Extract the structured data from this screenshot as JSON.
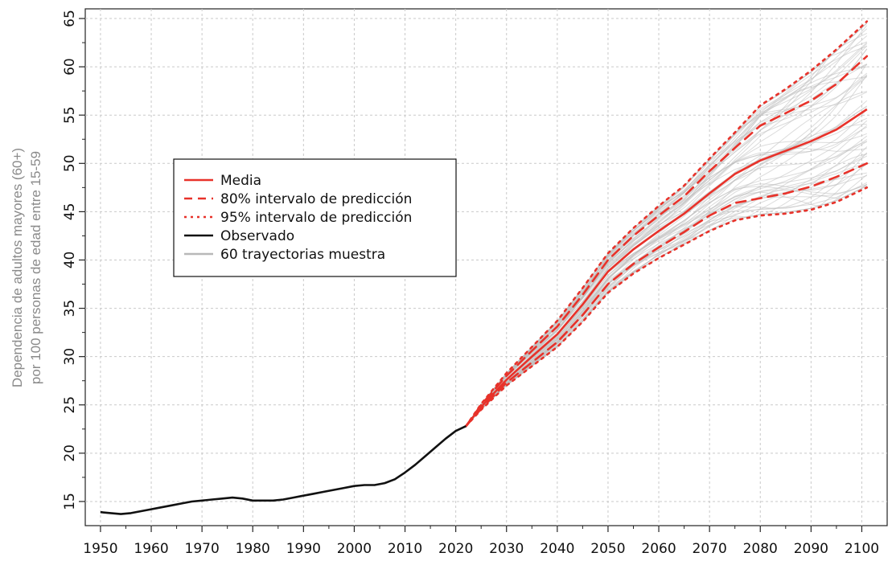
{
  "chart_data": {
    "type": "line",
    "title": "",
    "xlabel": "",
    "ylabel_lines": [
      "Dependencia de adultos mayores (60+)",
      "por 100 personas de edad entre 15-59"
    ],
    "xlim": [
      1947,
      2105
    ],
    "ylim": [
      12.5,
      66
    ],
    "x_ticks": [
      "1950",
      "1960",
      "1970",
      "1980",
      "1990",
      "2000",
      "2010",
      "2020",
      "2030",
      "2040",
      "2050",
      "2060",
      "2070",
      "2080",
      "2090",
      "2100"
    ],
    "y_ticks": [
      "15",
      "20",
      "25",
      "30",
      "35",
      "40",
      "45",
      "50",
      "55",
      "60",
      "65"
    ],
    "grid": true,
    "legend_position": "left-middle",
    "legend": [
      {
        "label": "Media",
        "style": "solid",
        "color": "#e8322a"
      },
      {
        "label": "80% intervalo de predicción",
        "style": "dashed",
        "color": "#e8322a"
      },
      {
        "label": "95% intervalo de predicción",
        "style": "dotted",
        "color": "#e8322a"
      },
      {
        "label": "Observado",
        "style": "solid",
        "color": "#111111"
      },
      {
        "label": "60 trayectorias muestra",
        "style": "solid",
        "color": "#b8b8b8"
      }
    ],
    "series": [
      {
        "name": "Observado",
        "role": "observed",
        "x": [
          1950,
          1952,
          1954,
          1956,
          1958,
          1960,
          1962,
          1964,
          1966,
          1968,
          1970,
          1972,
          1974,
          1976,
          1978,
          1980,
          1982,
          1984,
          1986,
          1988,
          1990,
          1992,
          1994,
          1996,
          1998,
          2000,
          2002,
          2004,
          2006,
          2008,
          2010,
          2012,
          2014,
          2016,
          2018,
          2020,
          2022
        ],
        "y": [
          13.9,
          13.8,
          13.7,
          13.8,
          14.0,
          14.2,
          14.4,
          14.6,
          14.8,
          15.0,
          15.1,
          15.2,
          15.3,
          15.4,
          15.3,
          15.1,
          15.1,
          15.1,
          15.2,
          15.4,
          15.6,
          15.8,
          16.0,
          16.2,
          16.4,
          16.6,
          16.7,
          16.7,
          16.9,
          17.3,
          18.0,
          18.8,
          19.7,
          20.6,
          21.5,
          22.3,
          22.8
        ]
      },
      {
        "name": "Media",
        "role": "median",
        "x": [
          2022,
          2025,
          2030,
          2035,
          2040,
          2045,
          2050,
          2055,
          2060,
          2065,
          2070,
          2075,
          2080,
          2085,
          2090,
          2095,
          2101
        ],
        "y": [
          22.8,
          24.8,
          27.6,
          30.0,
          32.3,
          35.4,
          38.8,
          41.1,
          43.0,
          44.8,
          46.9,
          48.9,
          50.3,
          51.3,
          52.3,
          53.5,
          55.6
        ]
      },
      {
        "name": "80% intervalo de predicción",
        "role": "pi80_upper",
        "x": [
          2022,
          2025,
          2030,
          2035,
          2040,
          2045,
          2050,
          2055,
          2060,
          2065,
          2070,
          2075,
          2080,
          2085,
          2090,
          2095,
          2101
        ],
        "y": [
          22.8,
          25.0,
          28.0,
          30.6,
          33.1,
          36.4,
          40.0,
          42.5,
          44.6,
          46.6,
          49.2,
          51.6,
          53.9,
          55.2,
          56.5,
          58.2,
          61.1
        ]
      },
      {
        "name": "80% intervalo de predicción",
        "role": "pi80_lower",
        "x": [
          2022,
          2025,
          2030,
          2035,
          2040,
          2045,
          2050,
          2055,
          2060,
          2065,
          2070,
          2075,
          2080,
          2085,
          2090,
          2095,
          2101
        ],
        "y": [
          22.8,
          24.6,
          27.3,
          29.4,
          31.5,
          34.3,
          37.5,
          39.6,
          41.3,
          42.9,
          44.6,
          45.9,
          46.4,
          46.9,
          47.6,
          48.6,
          50.0
        ]
      },
      {
        "name": "95% intervalo de predicción",
        "role": "pi95_upper",
        "x": [
          2022,
          2025,
          2030,
          2035,
          2040,
          2045,
          2050,
          2055,
          2060,
          2065,
          2070,
          2075,
          2080,
          2085,
          2090,
          2095,
          2101
        ],
        "y": [
          22.8,
          25.1,
          28.3,
          31.0,
          33.7,
          37.1,
          40.7,
          43.3,
          45.6,
          47.7,
          50.5,
          53.2,
          56.0,
          57.7,
          59.6,
          61.8,
          64.7
        ]
      },
      {
        "name": "95% intervalo de predicción",
        "role": "pi95_lower",
        "x": [
          2022,
          2025,
          2030,
          2035,
          2040,
          2045,
          2050,
          2055,
          2060,
          2065,
          2070,
          2075,
          2080,
          2085,
          2090,
          2095,
          2101
        ],
        "y": [
          22.8,
          24.5,
          27.0,
          29.0,
          31.0,
          33.6,
          36.6,
          38.6,
          40.2,
          41.6,
          43.0,
          44.1,
          44.6,
          44.8,
          45.2,
          46.0,
          47.5
        ]
      }
    ],
    "sample_trajectories_count": 60
  }
}
